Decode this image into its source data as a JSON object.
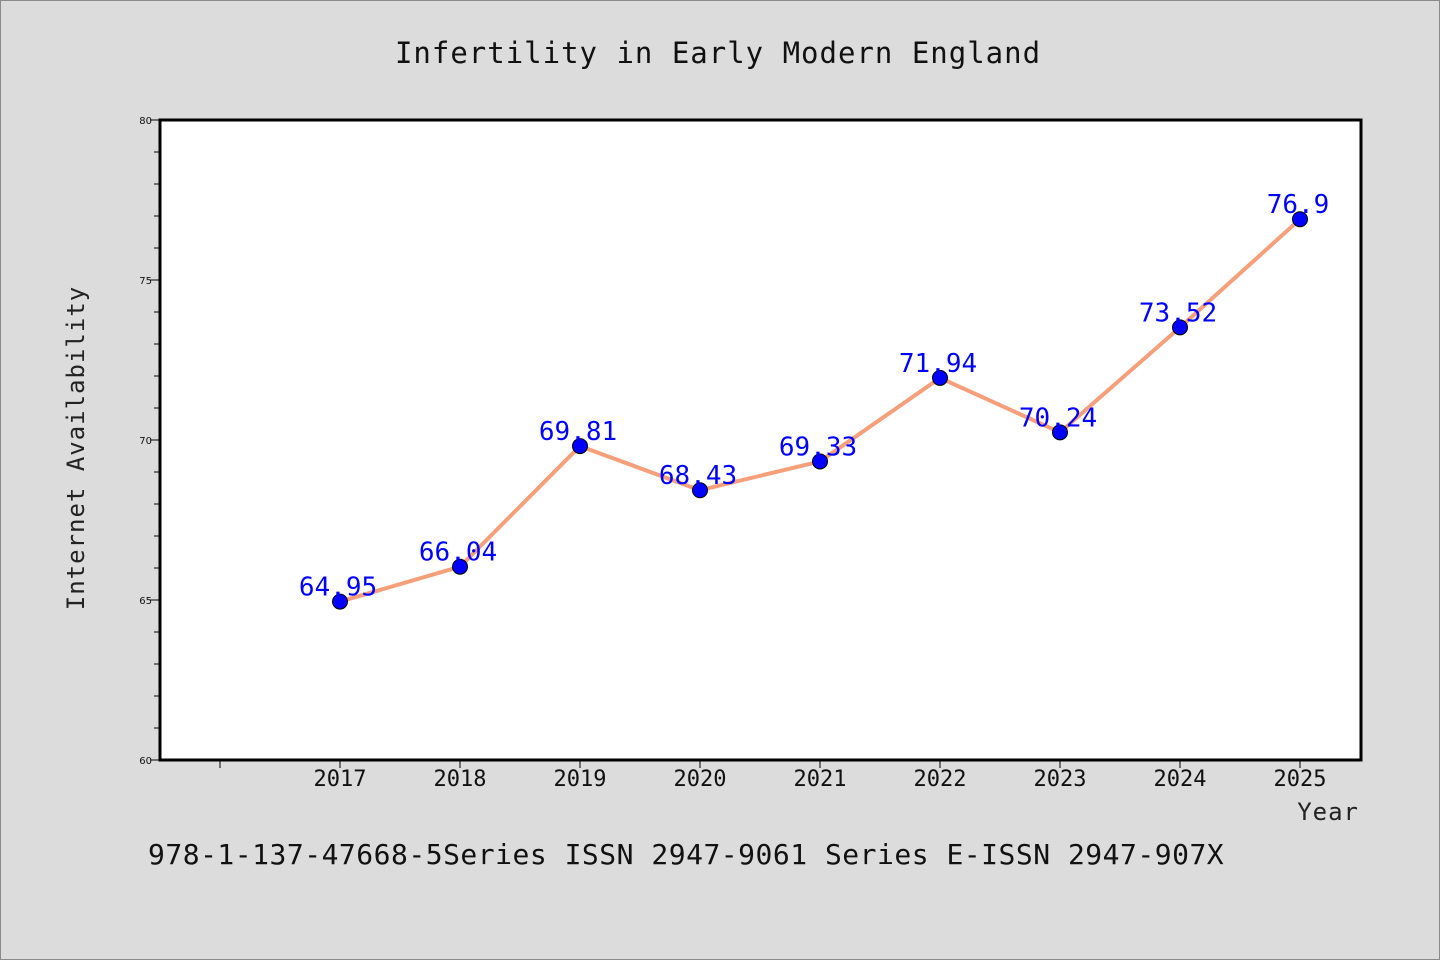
{
  "chart_data": {
    "type": "line",
    "title": "Infertility in Early Modern England",
    "xlabel": "Year",
    "ylabel": "Internet Availability",
    "categories": [
      "2017",
      "2018",
      "2019",
      "2020",
      "2021",
      "2022",
      "2023",
      "2024",
      "2025"
    ],
    "series": [
      {
        "values": [
          64.95,
          66.04,
          69.81,
          68.43,
          69.33,
          71.94,
          70.24,
          73.52,
          76.9
        ],
        "data_labels": [
          "64.95",
          "66.04",
          "69.81",
          "68.43",
          "69.33",
          "71.94",
          "70.24",
          "73.52",
          "76.9"
        ],
        "line_color": "#f5a07a",
        "marker_color": "#0000ff"
      }
    ],
    "ylim": [
      60,
      80
    ],
    "yticks": [
      60,
      65,
      70,
      75,
      80
    ],
    "grid": false,
    "legend": "none"
  },
  "footer": {
    "text": "978-1-137-47668-5Series ISSN 2947-9061 Series E-ISSN 2947-907X"
  },
  "colors": {
    "background": "#dcdcdc",
    "plot_background": "#ffffff",
    "line": "#f5a07a",
    "marker": "#0000ff",
    "data_label": "#0000ff"
  }
}
